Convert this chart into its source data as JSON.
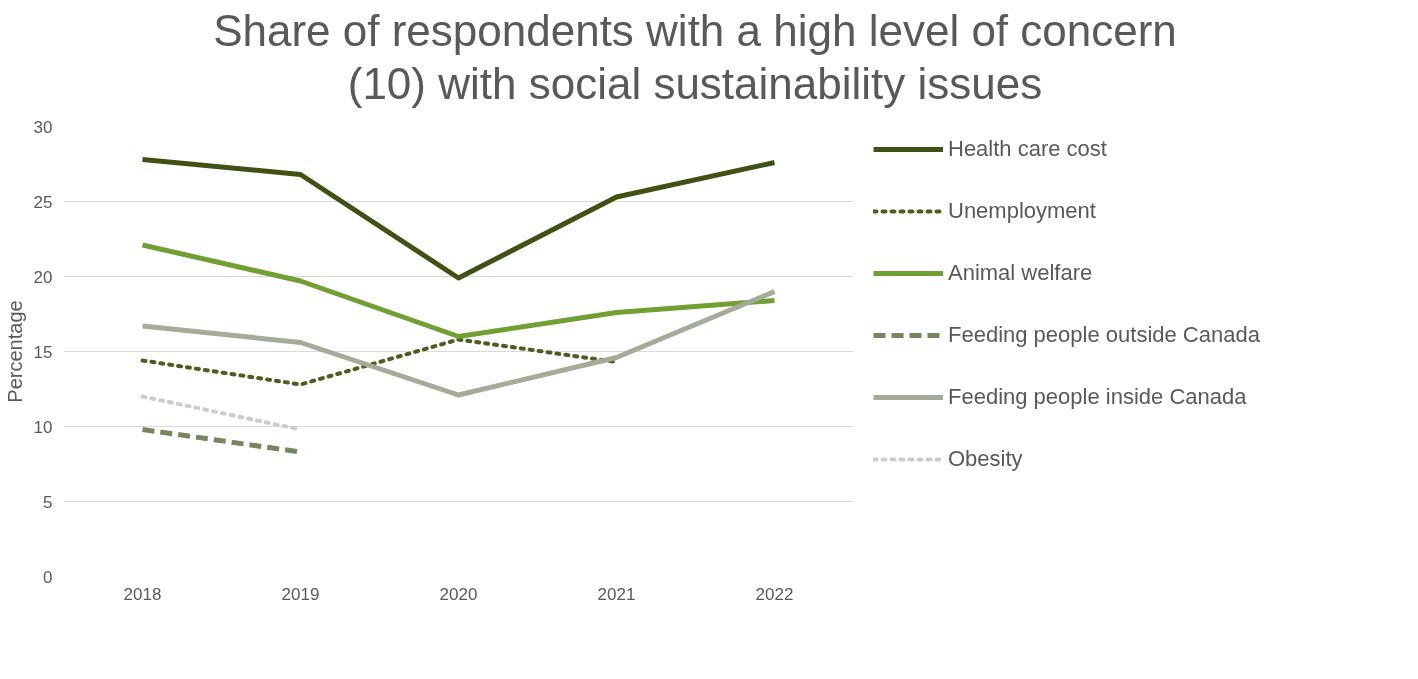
{
  "chart_data": {
    "type": "line",
    "title": "Share of respondents with a high level of concern\n(10) with social sustainability issues",
    "ylabel": "Percentage",
    "categories": [
      "2018",
      "2019",
      "2020",
      "2021",
      "2022"
    ],
    "series": [
      {
        "name": "Health care cost",
        "color": "#3f5214",
        "line_style": "solid",
        "values": [
          27.8,
          26.8,
          19.9,
          25.3,
          27.6
        ]
      },
      {
        "name": "Unemployment",
        "color": "#4b5e1c",
        "line_style": "dotted",
        "values": [
          14.4,
          12.8,
          15.8,
          14.3,
          null
        ]
      },
      {
        "name": "Animal welfare",
        "color": "#70a032",
        "line_style": "solid",
        "values": [
          22.1,
          19.7,
          16.0,
          17.6,
          18.4
        ]
      },
      {
        "name": "Feeding people outside Canada",
        "color": "#77875c",
        "line_style": "dashed",
        "values": [
          9.8,
          8.3,
          null,
          null,
          null
        ]
      },
      {
        "name": "Feeding people inside Canada",
        "color": "#a4ab98",
        "line_style": "solid",
        "values": [
          16.7,
          15.6,
          12.1,
          14.6,
          19.0
        ]
      },
      {
        "name": "Obesity",
        "color": "#cbcdc7",
        "line_style": "dotted",
        "values": [
          12.0,
          9.8,
          null,
          null,
          null
        ]
      }
    ],
    "ylim": [
      0,
      30
    ],
    "yticks": [
      0,
      5,
      10,
      15,
      20,
      25,
      30
    ],
    "grid": "y",
    "legend": "right"
  }
}
